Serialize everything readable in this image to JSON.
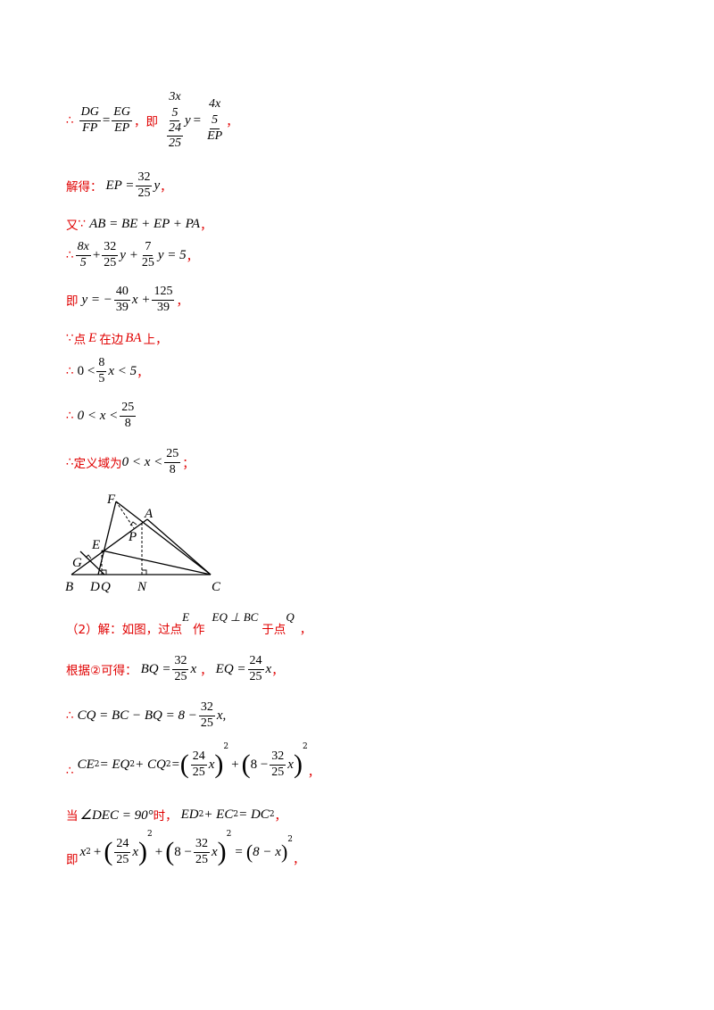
{
  "therefore": "∴",
  "because": "∵",
  "line1": {
    "f1_num": "DG",
    "f1_den": "FP",
    "eq": "=",
    "f2_num": "EG",
    "f2_den": "EP",
    "mid": "，即",
    "lhs_top": "3x",
    "lhs_mid1": "5",
    "lhs_mid2": "24",
    "lhs_bot": "25",
    "lhs_var": "y",
    "rhs_top": "4x",
    "rhs_mid": "5",
    "rhs_den": "EP",
    "end": "，"
  },
  "line2": {
    "label": "解得：",
    "lhs": "EP =",
    "num": "32",
    "den": "25",
    "var": "y",
    "end": "，"
  },
  "line3": {
    "label": "又",
    "expr": "AB = BE + EP + PA",
    "end": "，"
  },
  "line4": {
    "f1_num": "8x",
    "f1_den": "5",
    "plus1": "+",
    "f2_num": "32",
    "f2_den": "25",
    "v2": "y +",
    "f3_num": "7",
    "f3_den": "25",
    "v3": "y = 5",
    "end": "，"
  },
  "line5": {
    "label": "即",
    "lhs": "y = −",
    "f1_num": "40",
    "f1_den": "39",
    "v1": "x +",
    "f2_num": "125",
    "f2_den": "39",
    "end": "，"
  },
  "line6": {
    "a": "点",
    "b": "E",
    "c": "在边",
    "d": "BA",
    "e": "上，"
  },
  "line7": {
    "lhs": "0 <",
    "num": "8",
    "den": "5",
    "rhs": "x < 5",
    "end": "，"
  },
  "line8": {
    "lhs": "0 < x <",
    "num": "25",
    "den": "8"
  },
  "line9": {
    "label": "定义域为",
    "lhs": "0 < x <",
    "num": "25",
    "den": "8",
    "end": "；"
  },
  "figure": {
    "labels": {
      "F": "F",
      "A": "A",
      "P": "P",
      "E": "E",
      "G": "G",
      "B": "B",
      "D": "D",
      "Q": "Q",
      "N": "N",
      "C": "C"
    }
  },
  "line10": {
    "label": "（2）解：如图，过点",
    "e": "E",
    "zuo": "作",
    "expr": "EQ ⊥ BC",
    "yu": "于点",
    "q": "Q",
    "end": "，"
  },
  "line11": {
    "label": "根据②可得：",
    "l1": "BQ =",
    "n1": "32",
    "d1": "25",
    "x1": "x",
    "sep": "，",
    "l2": "EQ =",
    "n2": "24",
    "d2": "25",
    "x2": "x",
    "end": "，"
  },
  "line12": {
    "lhs": "CQ = BC − BQ = 8 −",
    "num": "32",
    "den": "25",
    "rhs": "x,",
    "end": ""
  },
  "line13": {
    "lhs": "CE",
    "mid": " = EQ",
    "mid2": " + CQ",
    "eq": " =",
    "n1": "24",
    "d1": "25",
    "x1": "x",
    "plus": "+",
    "pre2": "8 −",
    "n2": "32",
    "d2": "25",
    "x2": "x",
    "sq": "2",
    "end": "，"
  },
  "line14": {
    "label": "当",
    "cond": "∠DEC = 90°",
    "shi": "时，",
    "expr": "ED",
    "e2": " + EC",
    "e3": " = DC",
    "sq": "2",
    "end": "，"
  },
  "line15": {
    "label": "即",
    "x2": "x",
    "plus": "+",
    "n1": "24",
    "d1": "25",
    "x1": "x",
    "pre2": "8 −",
    "n2": "32",
    "d2": "25",
    "xx": "x",
    "eq": "=",
    "rhs": "8 − x",
    "sq": "2",
    "end": "，"
  }
}
